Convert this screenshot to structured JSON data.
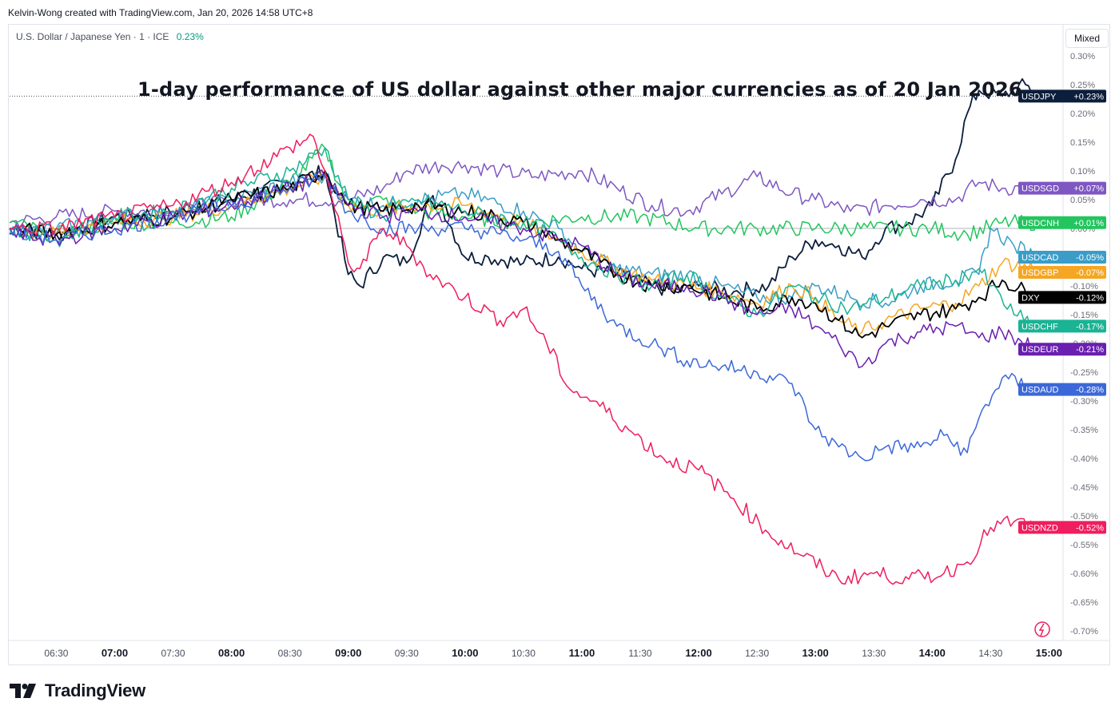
{
  "header": {
    "attribution": "Kelvin-Wong created with TradingView.com, Jan 20, 2026 14:58 UTC+8"
  },
  "symbol": {
    "name": "U.S. Dollar / Japanese Yen · 1 · ICE",
    "change": "0.23%"
  },
  "scale_mode_button": "Mixed",
  "footer": {
    "brand": "TradingView"
  },
  "chart_data": {
    "type": "line",
    "title": "1-day performance of US dollar against other major currencies as of 20 Jan 2026",
    "xlabel": "",
    "ylabel": "",
    "xlim": [
      6.1,
      15.1
    ],
    "ylim": [
      -0.7,
      0.3
    ],
    "x_unit": "hours",
    "x_ticks": [
      {
        "x": 6.5,
        "label": "06:30",
        "major": false
      },
      {
        "x": 7.0,
        "label": "07:00",
        "major": true
      },
      {
        "x": 7.5,
        "label": "07:30",
        "major": false
      },
      {
        "x": 8.0,
        "label": "08:00",
        "major": true
      },
      {
        "x": 8.5,
        "label": "08:30",
        "major": false
      },
      {
        "x": 9.0,
        "label": "09:00",
        "major": true
      },
      {
        "x": 9.5,
        "label": "09:30",
        "major": false
      },
      {
        "x": 10.0,
        "label": "10:00",
        "major": true
      },
      {
        "x": 10.5,
        "label": "10:30",
        "major": false
      },
      {
        "x": 11.0,
        "label": "11:00",
        "major": true
      },
      {
        "x": 11.5,
        "label": "11:30",
        "major": false
      },
      {
        "x": 12.0,
        "label": "12:00",
        "major": true
      },
      {
        "x": 12.5,
        "label": "12:30",
        "major": false
      },
      {
        "x": 13.0,
        "label": "13:00",
        "major": true
      },
      {
        "x": 13.5,
        "label": "13:30",
        "major": false
      },
      {
        "x": 14.0,
        "label": "14:00",
        "major": true
      },
      {
        "x": 14.5,
        "label": "14:30",
        "major": false
      },
      {
        "x": 15.0,
        "label": "15:00",
        "major": true
      }
    ],
    "y_ticks": [
      {
        "v": 0.3,
        "label": "0.30%"
      },
      {
        "v": 0.25,
        "label": "0.25%"
      },
      {
        "v": 0.2,
        "label": "0.20%"
      },
      {
        "v": 0.15,
        "label": "0.15%"
      },
      {
        "v": 0.1,
        "label": "0.10%"
      },
      {
        "v": 0.05,
        "label": "0.05%"
      },
      {
        "v": 0.0,
        "label": "0.00%"
      },
      {
        "v": -0.1,
        "label": "-0.10%"
      },
      {
        "v": -0.15,
        "label": "-0.15%"
      },
      {
        "v": -0.2,
        "label": "-0.20%"
      },
      {
        "v": -0.25,
        "label": "-0.25%"
      },
      {
        "v": -0.3,
        "label": "-0.30%"
      },
      {
        "v": -0.35,
        "label": "-0.35%"
      },
      {
        "v": -0.4,
        "label": "-0.40%"
      },
      {
        "v": -0.45,
        "label": "-0.45%"
      },
      {
        "v": -0.5,
        "label": "-0.50%"
      },
      {
        "v": -0.55,
        "label": "-0.55%"
      },
      {
        "v": -0.6,
        "label": "-0.60%"
      },
      {
        "v": -0.65,
        "label": "-0.65%"
      },
      {
        "v": -0.7,
        "label": "-0.70%"
      }
    ],
    "reference_line": {
      "v": 0.23,
      "style": "dotted"
    },
    "zero_line": {
      "v": 0.0
    },
    "series": [
      {
        "name": "USDJPY",
        "last_label": "+0.23%",
        "color": "#0b1e3c",
        "last_value": 0.23,
        "x": [
          6.1,
          6.5,
          7.0,
          7.5,
          8.0,
          8.5,
          8.8,
          9.0,
          9.1,
          9.3,
          9.5,
          9.7,
          9.8,
          10.0,
          10.2,
          10.5,
          10.8,
          11.0,
          11.3,
          11.6,
          11.8,
          12.0,
          12.3,
          12.6,
          12.8,
          13.0,
          13.2,
          13.4,
          13.6,
          13.8,
          14.0,
          14.2,
          14.3,
          14.4,
          14.6,
          14.8,
          14.9
        ],
        "values": [
          0.0,
          -0.01,
          0.02,
          0.03,
          0.05,
          0.08,
          0.1,
          -0.08,
          -0.1,
          -0.05,
          -0.06,
          0.05,
          0.04,
          -0.05,
          -0.05,
          -0.06,
          -0.05,
          -0.07,
          -0.08,
          -0.1,
          -0.11,
          -0.1,
          -0.11,
          -0.1,
          -0.05,
          -0.02,
          -0.03,
          -0.05,
          0.0,
          0.01,
          0.04,
          0.12,
          0.2,
          0.24,
          0.23,
          0.25,
          0.23
        ]
      },
      {
        "name": "USDSGD",
        "last_label": "+0.07%",
        "color": "#7e57c2",
        "last_value": 0.07,
        "x": [
          6.1,
          6.5,
          7.0,
          7.5,
          8.0,
          8.5,
          9.0,
          9.3,
          9.5,
          9.8,
          10.0,
          10.3,
          10.6,
          11.0,
          11.3,
          11.6,
          11.9,
          12.2,
          12.5,
          12.8,
          13.0,
          13.3,
          13.6,
          13.9,
          14.2,
          14.4,
          14.6,
          14.9
        ],
        "values": [
          0.01,
          0.02,
          0.03,
          0.03,
          0.05,
          0.05,
          0.05,
          0.07,
          0.1,
          0.11,
          0.11,
          0.1,
          0.09,
          0.1,
          0.07,
          0.04,
          0.03,
          0.06,
          0.09,
          0.06,
          0.05,
          0.03,
          0.04,
          0.05,
          0.05,
          0.08,
          0.07,
          0.07
        ]
      },
      {
        "name": "USDCNH",
        "last_label": "+0.01%",
        "color": "#22c55e",
        "last_value": 0.01,
        "x": [
          6.1,
          6.5,
          7.0,
          7.5,
          8.0,
          8.5,
          8.8,
          9.0,
          9.3,
          9.6,
          10.0,
          10.5,
          11.0,
          11.5,
          12.0,
          12.5,
          13.0,
          13.5,
          14.0,
          14.3,
          14.6,
          14.9
        ],
        "values": [
          0.01,
          -0.01,
          0.01,
          0.01,
          0.02,
          0.08,
          0.14,
          0.04,
          0.05,
          0.03,
          0.02,
          0.01,
          0.02,
          0.02,
          0.0,
          0.0,
          0.0,
          0.0,
          0.0,
          -0.01,
          0.01,
          0.01
        ]
      },
      {
        "name": "USDCAD",
        "last_label": "-0.05%",
        "color": "#3b9dc7",
        "last_value": -0.05,
        "x": [
          6.1,
          6.5,
          7.0,
          7.5,
          8.0,
          8.5,
          8.8,
          9.0,
          9.3,
          9.6,
          10.0,
          10.5,
          10.8,
          11.0,
          11.3,
          11.6,
          11.9,
          12.2,
          12.5,
          12.8,
          13.0,
          13.3,
          13.6,
          13.9,
          14.2,
          14.4,
          14.5,
          14.7,
          14.9
        ],
        "values": [
          -0.01,
          0.0,
          0.02,
          0.03,
          0.05,
          0.08,
          0.09,
          0.05,
          0.04,
          0.05,
          0.06,
          0.03,
          0.0,
          -0.04,
          -0.07,
          -0.08,
          -0.08,
          -0.1,
          -0.12,
          -0.12,
          -0.1,
          -0.12,
          -0.13,
          -0.1,
          -0.09,
          -0.08,
          0.0,
          -0.03,
          -0.05
        ]
      },
      {
        "name": "USDGBP",
        "last_label": "-0.07%",
        "color": "#f5a623",
        "last_value": -0.07,
        "x": [
          6.1,
          6.5,
          7.0,
          7.5,
          8.0,
          8.5,
          8.8,
          9.0,
          9.3,
          9.6,
          10.0,
          10.5,
          10.8,
          11.0,
          11.3,
          11.6,
          11.9,
          12.2,
          12.5,
          12.8,
          13.0,
          13.2,
          13.4,
          13.6,
          13.9,
          14.2,
          14.4,
          14.6,
          14.9
        ],
        "values": [
          0.0,
          -0.01,
          0.01,
          0.02,
          0.04,
          0.07,
          0.09,
          0.04,
          0.03,
          0.04,
          0.04,
          0.01,
          -0.02,
          -0.04,
          -0.07,
          -0.09,
          -0.1,
          -0.11,
          -0.13,
          -0.1,
          -0.12,
          -0.16,
          -0.18,
          -0.16,
          -0.14,
          -0.13,
          -0.1,
          -0.06,
          -0.07
        ]
      },
      {
        "name": "DXY",
        "last_label": "-0.12%",
        "color": "#000000",
        "last_value": -0.12,
        "x": [
          6.1,
          6.5,
          7.0,
          7.5,
          8.0,
          8.5,
          8.8,
          9.0,
          9.3,
          9.6,
          10.0,
          10.5,
          10.8,
          11.0,
          11.3,
          11.6,
          11.9,
          12.2,
          12.5,
          12.8,
          13.0,
          13.2,
          13.4,
          13.6,
          13.9,
          14.2,
          14.4,
          14.6,
          14.9
        ],
        "values": [
          0.0,
          -0.01,
          0.01,
          0.02,
          0.05,
          0.07,
          0.1,
          0.04,
          0.03,
          0.04,
          0.03,
          0.01,
          -0.02,
          -0.04,
          -0.08,
          -0.1,
          -0.1,
          -0.12,
          -0.14,
          -0.12,
          -0.13,
          -0.16,
          -0.19,
          -0.17,
          -0.15,
          -0.14,
          -0.12,
          -0.09,
          -0.12
        ]
      },
      {
        "name": "USDCHF",
        "last_label": "-0.17%",
        "color": "#1ab394",
        "last_value": -0.17,
        "x": [
          6.1,
          6.5,
          7.0,
          7.5,
          8.0,
          8.5,
          8.8,
          9.0,
          9.3,
          9.6,
          10.0,
          10.5,
          10.8,
          11.0,
          11.3,
          11.6,
          11.9,
          12.2,
          12.5,
          12.8,
          13.0,
          13.3,
          13.6,
          13.9,
          14.2,
          14.4,
          14.5,
          14.7,
          14.9
        ],
        "values": [
          0.0,
          -0.02,
          0.02,
          0.03,
          0.07,
          0.1,
          0.14,
          0.05,
          0.02,
          0.05,
          0.03,
          0.01,
          -0.02,
          -0.05,
          -0.08,
          -0.1,
          -0.08,
          -0.12,
          -0.15,
          -0.1,
          -0.12,
          -0.14,
          -0.12,
          -0.1,
          -0.09,
          -0.07,
          -0.1,
          -0.15,
          -0.17
        ]
      },
      {
        "name": "USDEUR",
        "last_label": "-0.21%",
        "color": "#6a1fb0",
        "last_value": -0.21,
        "x": [
          6.1,
          6.5,
          7.0,
          7.5,
          8.0,
          8.5,
          8.8,
          9.0,
          9.3,
          9.6,
          10.0,
          10.5,
          10.8,
          11.0,
          11.3,
          11.6,
          11.9,
          12.2,
          12.5,
          12.8,
          13.0,
          13.2,
          13.4,
          13.6,
          13.9,
          14.2,
          14.4,
          14.6,
          14.9
        ],
        "values": [
          -0.01,
          -0.02,
          0.0,
          0.02,
          0.04,
          0.07,
          0.09,
          0.04,
          0.02,
          0.03,
          0.02,
          0.0,
          -0.02,
          -0.03,
          -0.08,
          -0.1,
          -0.1,
          -0.12,
          -0.15,
          -0.14,
          -0.17,
          -0.2,
          -0.24,
          -0.2,
          -0.18,
          -0.17,
          -0.19,
          -0.18,
          -0.21
        ]
      },
      {
        "name": "USDAUD",
        "last_label": "-0.28%",
        "color": "#3b68d8",
        "last_value": -0.28,
        "x": [
          6.1,
          6.5,
          7.0,
          7.5,
          8.0,
          8.5,
          8.8,
          9.0,
          9.3,
          9.6,
          10.0,
          10.3,
          10.5,
          10.8,
          11.0,
          11.3,
          11.6,
          11.9,
          12.2,
          12.5,
          12.8,
          13.0,
          13.2,
          13.4,
          13.6,
          13.9,
          14.1,
          14.3,
          14.4,
          14.6,
          14.9
        ],
        "values": [
          0.0,
          -0.02,
          0.0,
          0.02,
          0.04,
          0.07,
          0.09,
          0.03,
          0.0,
          0.0,
          0.0,
          -0.01,
          -0.02,
          -0.04,
          -0.1,
          -0.17,
          -0.2,
          -0.23,
          -0.24,
          -0.25,
          -0.27,
          -0.35,
          -0.38,
          -0.4,
          -0.38,
          -0.38,
          -0.36,
          -0.39,
          -0.33,
          -0.26,
          -0.28
        ]
      },
      {
        "name": "USDNZD",
        "last_label": "-0.52%",
        "color": "#ef1e5e",
        "last_value": -0.52,
        "x": [
          6.1,
          6.5,
          7.0,
          7.5,
          8.0,
          8.5,
          8.7,
          8.8,
          9.0,
          9.1,
          9.3,
          9.5,
          9.7,
          10.0,
          10.3,
          10.5,
          10.7,
          10.9,
          11.1,
          11.4,
          11.7,
          12.0,
          12.3,
          12.6,
          12.9,
          13.2,
          13.5,
          13.8,
          14.1,
          14.3,
          14.5,
          14.7,
          14.9
        ],
        "values": [
          0.0,
          0.0,
          0.02,
          0.04,
          0.08,
          0.14,
          0.16,
          0.1,
          -0.06,
          -0.07,
          0.0,
          -0.03,
          -0.08,
          -0.12,
          -0.16,
          -0.14,
          -0.2,
          -0.28,
          -0.3,
          -0.35,
          -0.4,
          -0.42,
          -0.47,
          -0.53,
          -0.57,
          -0.61,
          -0.6,
          -0.61,
          -0.6,
          -0.58,
          -0.52,
          -0.51,
          -0.52
        ]
      }
    ]
  }
}
